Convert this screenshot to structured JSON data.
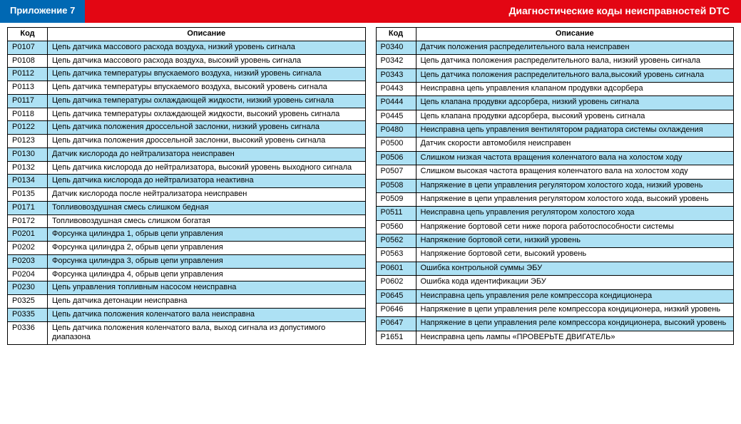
{
  "header": {
    "left_label": "Приложение 7",
    "right_label": "Диагностические коды неисправностей DTC"
  },
  "columns": {
    "code": "Код",
    "desc": "Описание"
  },
  "colors": {
    "header_left_bg": "#0068b3",
    "header_right_bg": "#e30613",
    "stripe_even": "#ade1f4",
    "stripe_odd": "#ffffff",
    "border": "#000000",
    "text": "#000000",
    "header_text": "#ffffff"
  },
  "left_table": [
    {
      "code": "P0107",
      "desc": "Цепь датчика массового расхода воздуха, низкий уровень сигнала"
    },
    {
      "code": "P0108",
      "desc": "Цепь датчика массового расхода воздуха, высокий уровень сигнала"
    },
    {
      "code": "P0112",
      "desc": "Цепь датчика температуры впускаемого воздуха, низкий уровень сигнала"
    },
    {
      "code": "P0113",
      "desc": "Цепь датчика температуры впускаемого воздуха, высокий уровень сигнала"
    },
    {
      "code": "P0117",
      "desc": "Цепь датчика температуры охлаждающей жидкости, низкий уровень сигнала"
    },
    {
      "code": "P0118",
      "desc": "Цепь датчика температуры охлаждающей жидкости, высокий уровень сигнала"
    },
    {
      "code": "P0122",
      "desc": "Цепь датчика положения дроссельной заслонки, низкий уровень сигнала"
    },
    {
      "code": "P0123",
      "desc": "Цепь датчика положения дроссельной заслонки, высокий уровень сигнала"
    },
    {
      "code": "P0130",
      "desc": "Датчик кислорода до нейтрализатора неисправен"
    },
    {
      "code": "P0132",
      "desc": "Цепь датчика кислорода до нейтрализатора, высокий уровень выходного сигнала"
    },
    {
      "code": "P0134",
      "desc": "Цепь датчика кислорода до нейтрализатора неактивна"
    },
    {
      "code": "P0135",
      "desc": "Датчик кислорода после нейтрализатора неисправен"
    },
    {
      "code": "P0171",
      "desc": "Топливовоздушная смесь слишком бедная"
    },
    {
      "code": "P0172",
      "desc": "Топливовоздушная смесь слишком богатая"
    },
    {
      "code": "P0201",
      "desc": "Форсунка цилиндра 1, обрыв цепи управления"
    },
    {
      "code": "P0202",
      "desc": "Форсунка цилиндра 2, обрыв цепи управления"
    },
    {
      "code": "P0203",
      "desc": "Форсунка цилиндра 3, обрыв цепи управления"
    },
    {
      "code": "P0204",
      "desc": "Форсунка цилиндра 4, обрыв цепи управления"
    },
    {
      "code": "P0230",
      "desc": "Цепь управления топливным насосом неисправна"
    },
    {
      "code": "P0325",
      "desc": "Цепь датчика детонации неисправна"
    },
    {
      "code": "P0335",
      "desc": "Цепь датчика положения коленчатого вала неисправна"
    },
    {
      "code": "P0336",
      "desc": "Цепь датчика положения коленчатого вала, выход сигнала из допустимого диапазона"
    }
  ],
  "right_table": [
    {
      "code": "P0340",
      "desc": "Датчик положения распределительного вала неисправен"
    },
    {
      "code": "P0342",
      "desc": "Цепь датчика положения распределительного вала, низкий уровень сигнала"
    },
    {
      "code": "P0343",
      "desc": "Цепь датчика положения распределительного вала,высокий уровень сигнала"
    },
    {
      "code": "P0443",
      "desc": "Неисправна цепь управления клапаном продувки адсорбера"
    },
    {
      "code": "P0444",
      "desc": "Цепь клапана продувки адсорбера, низкий уровень сигнала"
    },
    {
      "code": "P0445",
      "desc": "Цепь клапана продувки адсорбера, высокий уровень сигнала"
    },
    {
      "code": "P0480",
      "desc": "Неисправна цепь управления вентилятором радиатора системы охлаждения"
    },
    {
      "code": "P0500",
      "desc": "Датчик скорости автомобиля неисправен"
    },
    {
      "code": "P0506",
      "desc": "Слишком низкая частота вращения коленчатого вала на холостом ходу"
    },
    {
      "code": "P0507",
      "desc": "Слишком высокая частота вращения коленчатого вала на холостом ходу"
    },
    {
      "code": "P0508",
      "desc": "Напряжение в цепи управления регулятором холостого хода, низкий уровень"
    },
    {
      "code": "P0509",
      "desc": "Напряжение в цепи управления регулятором холостого хода, высокий уровень"
    },
    {
      "code": "P0511",
      "desc": "Неисправна цепь управления регулятором холостого хода"
    },
    {
      "code": "P0560",
      "desc": "Напряжение бортовой сети ниже порога работоспособности системы"
    },
    {
      "code": "P0562",
      "desc": "Напряжение бортовой сети, низкий уровень"
    },
    {
      "code": "P0563",
      "desc": "Напряжение бортовой сети, высокий уровень"
    },
    {
      "code": "P0601",
      "desc": "Ошибка контрольной суммы ЭБУ"
    },
    {
      "code": "P0602",
      "desc": "Ошибка кода идентификации ЭБУ"
    },
    {
      "code": "P0645",
      "desc": "Неисправна цепь управления реле компрессора кондиционера"
    },
    {
      "code": "P0646",
      "desc": "Напряжение в цепи управления реле компрессора кондиционера, низкий уровень"
    },
    {
      "code": "P0647",
      "desc": "Напряжение в цепи управления реле компрессора кондиционера, высокий уровень"
    },
    {
      "code": "P1651",
      "desc": "Неисправна цепь лампы «ПРОВЕРЬТЕ ДВИГАТЕЛЬ»"
    }
  ]
}
